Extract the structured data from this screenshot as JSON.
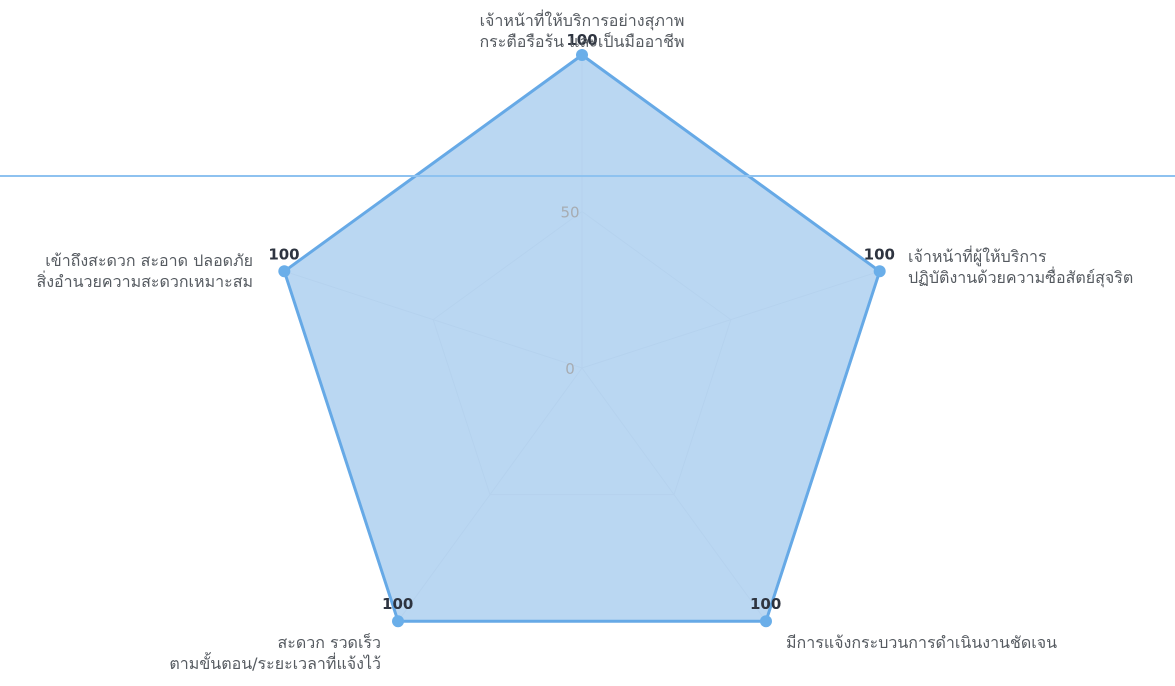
{
  "chart_data": {
    "type": "radar",
    "title": "",
    "axes": [
      [
        "เจ้าหน้าที่ให้บริการอย่างสุภาพ",
        "กระตือรือร้น และเป็นมืออาชีพ"
      ],
      [
        "เจ้าหน้าที่ผู้ให้บริการ",
        "ปฏิบัติงานด้วยความซื่อสัตย์สุจริต"
      ],
      [
        "มีการแจ้งกระบวนการดำเนินงานชัดเจน"
      ],
      [
        "สะดวก รวดเร็ว",
        "ตามขั้นตอน/ระยะเวลาที่แจ้งไว้"
      ],
      [
        "เข้าถึงสะดวก สะอาด ปลอดภัย",
        "สิ่งอำนวยความสะดวกเหมาะสม"
      ]
    ],
    "ticks": [
      0,
      50
    ],
    "range": [
      0,
      100
    ],
    "series": [
      {
        "values": [
          100,
          100,
          100,
          100,
          100
        ],
        "data_labels": [
          "100",
          "100",
          "100",
          "100",
          "100"
        ]
      }
    ],
    "colors": {
      "series_fill": "#a9cdef",
      "series_stroke": "#66a9e6",
      "point": "#6aaee9",
      "grid": "#e4e6ea",
      "overlay_line": "#8ec2f0"
    },
    "grid": true,
    "legend": "none"
  }
}
